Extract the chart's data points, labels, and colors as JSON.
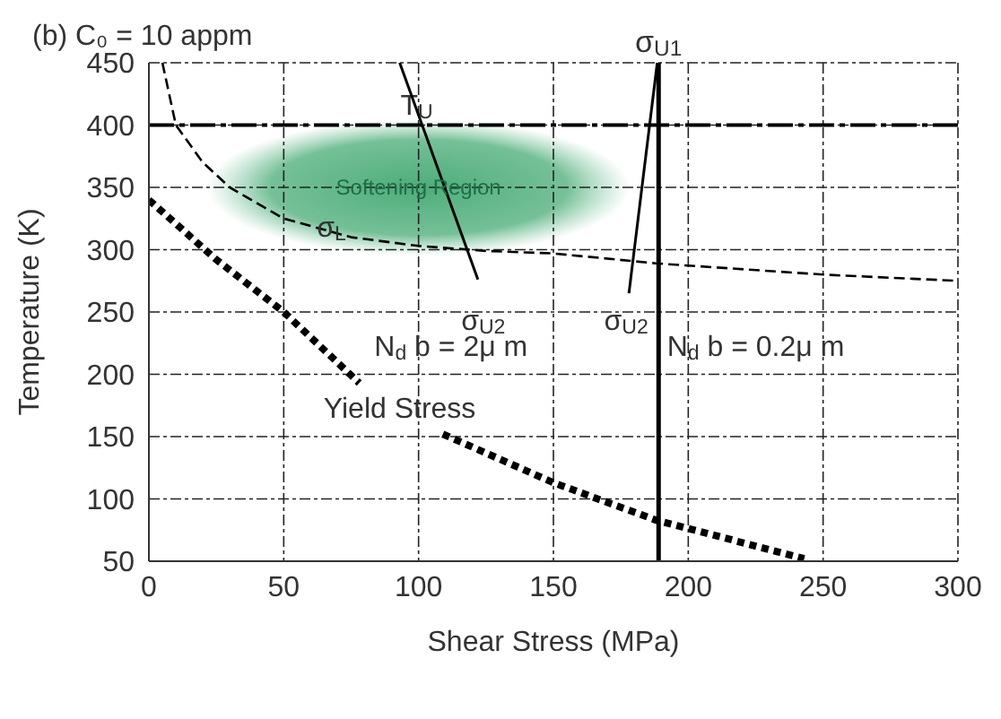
{
  "chart_data": {
    "type": "line",
    "title": "(b) C₀ = 10 appm",
    "xlabel": "Shear Stress (MPa)",
    "ylabel": "Temperature (K)",
    "xlim": [
      0,
      300
    ],
    "xticks": [
      0,
      50,
      100,
      150,
      200,
      250,
      300
    ],
    "ylim": [
      50,
      450
    ],
    "yticks": [
      50,
      100,
      150,
      200,
      250,
      300,
      350,
      400,
      450
    ],
    "grid": true,
    "legend": false,
    "marker": "none",
    "series": [
      {
        "color": "#000000",
        "line_style": "dashed",
        "x": [
          5,
          10,
          20,
          30,
          50,
          75,
          100,
          125,
          150,
          188,
          250,
          300
        ],
        "values": [
          450,
          400,
          370,
          350,
          325,
          310,
          303,
          299,
          297,
          289,
          280,
          275
        ]
      },
      {
        "color": "#000000",
        "line_style": "dotted",
        "x": [
          0,
          25,
          50,
          78,
          95,
          109,
          150,
          188,
          243
        ],
        "values": [
          340,
          292,
          250,
          193,
          null,
          152,
          113,
          83,
          52
        ]
      },
      {
        "color": "#000000",
        "line_style": "solid",
        "x": [
          93,
          122
        ],
        "values": [
          450,
          276
        ]
      },
      {
        "color": "#000000",
        "line_style": "solid",
        "x": [
          188.5,
          178
        ],
        "values": [
          450,
          265
        ]
      }
    ],
    "ref_lines": [
      {
        "axis": "y",
        "value": 400,
        "label": "T$_{U}$",
        "line_style": "dashed",
        "color": "#000000"
      },
      {
        "axis": "x",
        "value": 189,
        "label": "σ$_{U1}$",
        "line_style": "solid",
        "color": "#000000"
      }
    ],
    "annotations": [
      "Softening Region",
      {
        "text": "σ$_{L}$",
        "x": 73,
        "y": 312
      },
      "σ$_{U2}$",
      "σ$_{U2}$",
      "N$_{d}$ b = 2μ m",
      "N$_{d}$ b = 0.2μ m",
      "Yield Stress"
    ]
  }
}
